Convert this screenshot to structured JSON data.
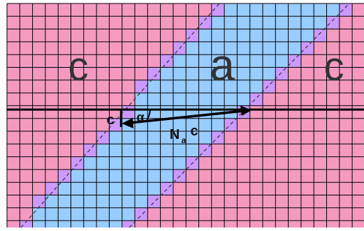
{
  "diagram": {
    "colors": {
      "background": "#ffffff",
      "c_region": "#f49ac1",
      "a_region": "#99ccff",
      "boundary_cells": "#cc99ff",
      "grid_lines": "#000000",
      "dashed_lines": "#333333",
      "arrow": "#000000"
    },
    "labels": {
      "region_left": "c",
      "region_center": "a",
      "region_right": "c",
      "small_c": "c",
      "alpha": "α",
      "vector_N": "N",
      "vector_sub": "a",
      "vector_c": "c"
    }
  }
}
